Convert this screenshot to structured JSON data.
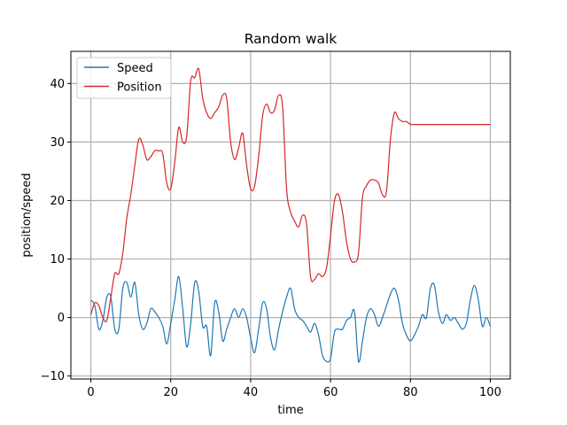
{
  "chart_data": {
    "type": "line",
    "title": "Random walk",
    "xlabel": "time",
    "ylabel": "position/speed",
    "xlim": [
      -5,
      105
    ],
    "ylim": [
      -10.5,
      45.5
    ],
    "xticks": [
      0,
      20,
      40,
      60,
      80,
      100
    ],
    "yticks": [
      -10,
      0,
      10,
      20,
      30,
      40
    ],
    "grid": true,
    "legend_position": "top-left",
    "series": [
      {
        "name": "Speed",
        "color": "#1f77b4",
        "x": [
          0,
          1,
          2,
          3,
          4,
          5,
          6,
          7,
          8,
          9,
          10,
          11,
          12,
          13,
          14,
          15,
          16,
          17,
          18,
          19,
          20,
          21,
          22,
          23,
          24,
          25,
          26,
          27,
          28,
          29,
          30,
          31,
          32,
          33,
          34,
          35,
          36,
          37,
          38,
          39,
          40,
          41,
          42,
          43,
          44,
          45,
          46,
          47,
          48,
          49,
          50,
          51,
          52,
          53,
          54,
          55,
          56,
          57,
          58,
          59,
          60,
          61,
          62,
          63,
          64,
          65,
          66,
          67,
          68,
          69,
          70,
          71,
          72,
          73,
          74,
          75,
          76,
          77,
          78,
          79,
          80,
          81,
          82,
          83,
          84,
          85,
          86,
          87,
          88,
          89,
          90,
          91,
          92,
          93,
          94,
          95,
          96,
          97,
          98,
          99,
          100
        ],
        "values": [
          3.0,
          2.0,
          -2.0,
          -0.5,
          3.5,
          3.5,
          -2.0,
          -2.0,
          5.0,
          6.0,
          3.5,
          6.0,
          0.5,
          -2.0,
          -1.0,
          1.5,
          1.0,
          0.0,
          -1.5,
          -4.5,
          -1.0,
          3.0,
          7.0,
          1.5,
          -5.0,
          -1.0,
          6.0,
          4.5,
          -1.5,
          -1.5,
          -6.5,
          2.5,
          1.0,
          -4.0,
          -2.0,
          0.0,
          1.5,
          0.0,
          1.5,
          0.0,
          -3.5,
          -6.0,
          -2.0,
          2.5,
          1.5,
          -3.5,
          -5.5,
          -2.0,
          1.0,
          3.5,
          5.0,
          1.5,
          0.0,
          -0.5,
          -1.5,
          -2.5,
          -1.0,
          -3.0,
          -6.5,
          -7.5,
          -7.0,
          -2.5,
          -2.0,
          -2.0,
          -0.5,
          0.0,
          1.0,
          -7.5,
          -4.0,
          0.0,
          1.5,
          0.5,
          -1.5,
          0.0,
          2.0,
          4.0,
          5.0,
          3.0,
          -1.0,
          -3.0,
          -4.0,
          -3.0,
          -1.5,
          0.5,
          0.0,
          5.0,
          5.5,
          1.0,
          -1.0,
          0.5,
          -0.5,
          0.0,
          -1.0,
          -2.0,
          -1.0,
          3.0,
          5.5,
          3.0,
          -1.5,
          0.0,
          -1.5
        ]
      },
      {
        "name": "Position",
        "color": "#d62728",
        "x": [
          0,
          1,
          2,
          3,
          4,
          5,
          6,
          7,
          8,
          9,
          10,
          11,
          12,
          13,
          14,
          15,
          16,
          17,
          18,
          19,
          20,
          21,
          22,
          23,
          24,
          25,
          26,
          27,
          28,
          29,
          30,
          31,
          32,
          33,
          34,
          35,
          36,
          37,
          38,
          39,
          40,
          41,
          42,
          43,
          44,
          45,
          46,
          47,
          48,
          49,
          50,
          51,
          52,
          53,
          54,
          55,
          56,
          57,
          58,
          59,
          60,
          61,
          62,
          63,
          64,
          65,
          66,
          67,
          68,
          69,
          70,
          71,
          72,
          73,
          74,
          75,
          76,
          77,
          78,
          79,
          80,
          81,
          82,
          83,
          84,
          85,
          86,
          87,
          88,
          89,
          90,
          91,
          92,
          93,
          94,
          95,
          96,
          97,
          98,
          99,
          100
        ],
        "values": [
          0.5,
          2.5,
          2.0,
          0.0,
          -0.5,
          3.5,
          7.5,
          7.5,
          11.0,
          17.0,
          21.0,
          26.0,
          30.5,
          29.5,
          27.0,
          27.5,
          28.5,
          28.5,
          28.0,
          23.0,
          22.0,
          26.5,
          32.5,
          30.0,
          31.0,
          40.5,
          41.0,
          42.5,
          37.5,
          35.0,
          34.0,
          35.0,
          36.0,
          38.0,
          37.5,
          30.0,
          27.0,
          29.0,
          31.5,
          26.0,
          22.0,
          22.5,
          27.5,
          34.5,
          36.5,
          35.0,
          35.5,
          38.0,
          36.0,
          22.0,
          18.0,
          16.5,
          15.5,
          17.5,
          16.0,
          7.0,
          6.5,
          7.5,
          7.0,
          8.5,
          14.0,
          20.0,
          21.0,
          18.0,
          13.0,
          10.0,
          9.5,
          11.0,
          20.5,
          22.5,
          23.5,
          23.5,
          23.0,
          21.0,
          21.5,
          30.5,
          35.0,
          34.0,
          33.5,
          33.5,
          33.0,
          33.0,
          33.0,
          33.0,
          33.0,
          33.0,
          33.0,
          33.0,
          33.0,
          33.0,
          33.0,
          33.0,
          33.0,
          33.0,
          33.0,
          33.0,
          33.0,
          33.0,
          33.0,
          33.0,
          33.0
        ]
      }
    ]
  }
}
